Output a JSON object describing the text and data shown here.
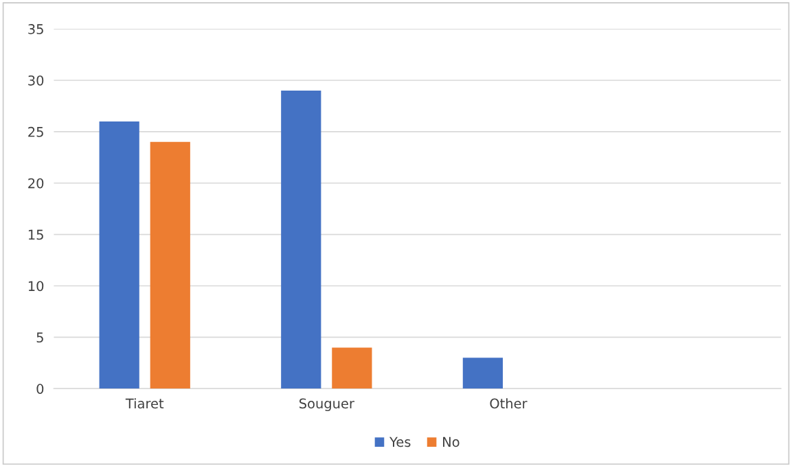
{
  "chart_data": {
    "type": "bar",
    "categories": [
      "Tiaret",
      "Souguer",
      "Other",
      null
    ],
    "series": [
      {
        "name": "Yes",
        "color": "#4472c4",
        "values": [
          26,
          29,
          3,
          null
        ]
      },
      {
        "name": "No",
        "color": "#ed7d31",
        "values": [
          24,
          4,
          null,
          null
        ]
      }
    ],
    "ylim": [
      0,
      35
    ],
    "yticks": [
      0,
      5,
      10,
      15,
      20,
      25,
      30,
      35
    ],
    "grid": "y",
    "legend": "bottom"
  }
}
